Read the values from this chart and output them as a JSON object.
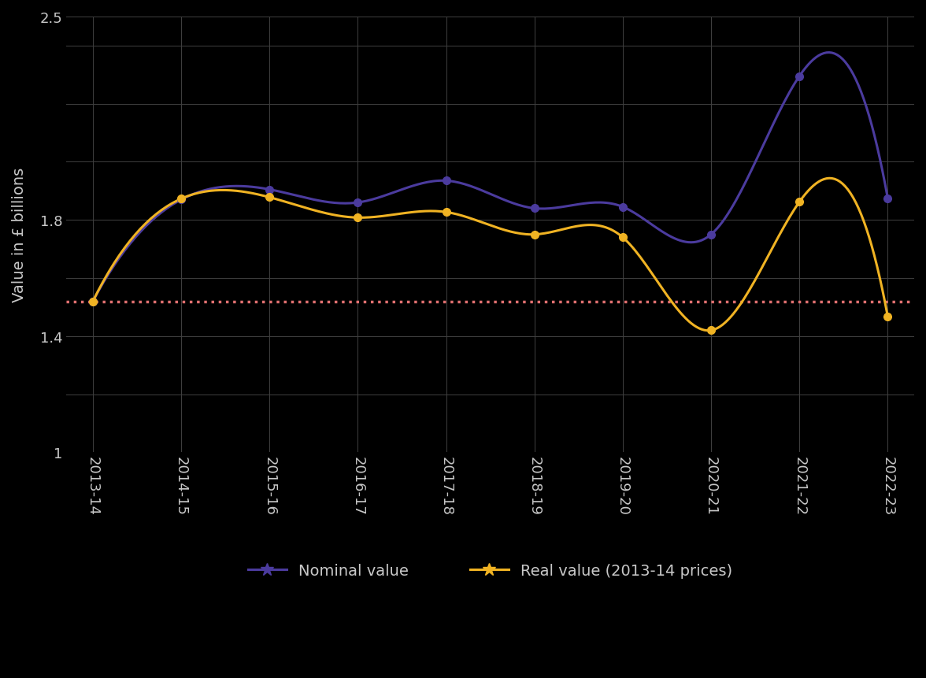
{
  "categories": [
    "2013-14",
    "2014-15",
    "2015-16",
    "2016-17",
    "2017-18",
    "2018-19",
    "2019-20",
    "2020-21",
    "2021-22",
    "2022-23"
  ],
  "nominal_values": [
    1.52,
    1.87,
    1.905,
    1.86,
    1.935,
    1.84,
    1.845,
    1.75,
    2.295,
    1.875
  ],
  "real_values": [
    1.52,
    1.873,
    1.878,
    1.808,
    1.827,
    1.75,
    1.74,
    1.42,
    1.862,
    1.468
  ],
  "dotted_line_value": 1.52,
  "nominal_color": "#4b3b9e",
  "real_color": "#f0b323",
  "dotted_color": "#e07070",
  "background_color": "#000000",
  "text_color": "#c8c8c8",
  "grid_color": "#404040",
  "ylabel": "Value in £ billions",
  "ylim": [
    1.0,
    2.5
  ],
  "ytick_positions": [
    1.0,
    1.4,
    1.8,
    2.5
  ],
  "ytick_labels": [
    "1",
    "1.4",
    "1.8",
    "2.5"
  ],
  "legend_nominal": "Nominal value",
  "legend_real": "Real value (2013-14 prices)",
  "axis_fontsize": 14,
  "tick_fontsize": 13,
  "legend_fontsize": 14
}
